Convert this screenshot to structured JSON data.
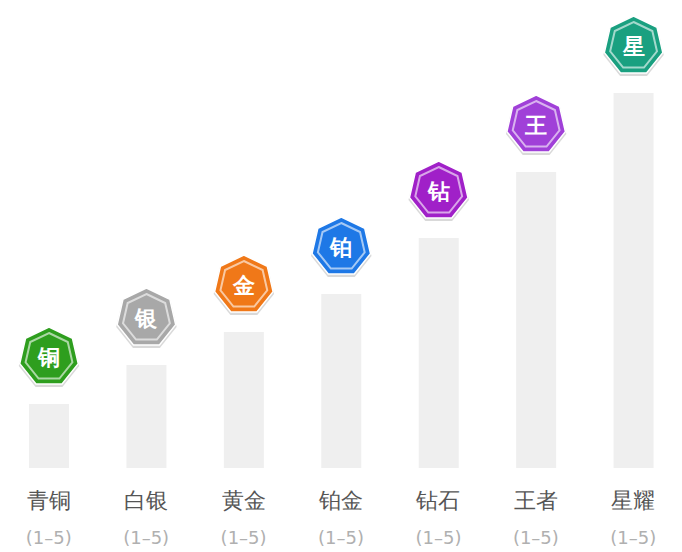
{
  "chart_data": {
    "type": "bar",
    "categories": [
      "青铜",
      "白银",
      "黄金",
      "铂金",
      "钻石",
      "王者",
      "星耀"
    ],
    "sublabels": [
      "(1–5)",
      "(1–5)",
      "(1–5)",
      "(1–5)",
      "(1–5)",
      "(1–5)",
      "(1–5)"
    ],
    "values": [
      64,
      103,
      136,
      174,
      230,
      296,
      375
    ],
    "color": "#efefef",
    "ylim": [
      0,
      400
    ],
    "tick_labels": "x",
    "grid": false,
    "badge_texts": [
      "铜",
      "银",
      "金",
      "铂",
      "钻",
      "王",
      "星"
    ],
    "badge_colors": [
      "#2e9e1e",
      "#a8a8a8",
      "#f07818",
      "#1e78e6",
      "#a020c8",
      "#a040d8",
      "#1aa080"
    ]
  }
}
